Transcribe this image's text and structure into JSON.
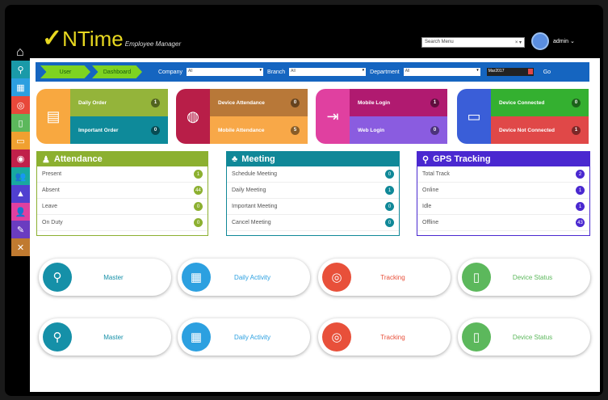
{
  "header": {
    "logo": "NTime",
    "logo_sub": "Employee Manager",
    "search_placeholder": "Search Menu",
    "user": "admin"
  },
  "sidebar": [
    {
      "icon": "location-icon",
      "color": "#1a9aa8"
    },
    {
      "icon": "calendar-check-icon",
      "color": "#2c9fe0"
    },
    {
      "icon": "tracking-icon",
      "color": "#e8483a"
    },
    {
      "icon": "mobile-icon",
      "color": "#5cb85c"
    },
    {
      "icon": "inbox-icon",
      "color": "#f0a030"
    },
    {
      "icon": "target-icon",
      "color": "#c0204a"
    },
    {
      "icon": "users-icon",
      "color": "#18a8a0"
    },
    {
      "icon": "chart-icon",
      "color": "#5040d0"
    },
    {
      "icon": "user-edit-icon",
      "color": "#e040a0"
    },
    {
      "icon": "edit-icon",
      "color": "#6a3cc0"
    },
    {
      "icon": "tools-icon",
      "color": "#c07a30"
    }
  ],
  "filter": {
    "crumbs": [
      "User",
      "Dashboard"
    ],
    "company_label": "Company",
    "company_value": "All",
    "branch_label": "Branch",
    "branch_value": "All",
    "department_label": "Department",
    "department_value": "All",
    "month": "Mar2017",
    "go": "Go"
  },
  "cards": [
    {
      "color": "#f8a840",
      "rows": [
        {
          "label": "Daily Order",
          "value": "1",
          "color": "#94b43a"
        },
        {
          "label": "Important Order",
          "value": "0",
          "color": "#0e8a9a"
        }
      ]
    },
    {
      "color": "#b81e48",
      "rows": [
        {
          "label": "Device Attendance",
          "value": "0",
          "color": "#b87838"
        },
        {
          "label": "Mobile Attendance",
          "value": "5",
          "color": "#f8a848"
        }
      ]
    },
    {
      "color": "#e040a0",
      "rows": [
        {
          "label": "Mobile Login",
          "value": "1",
          "color": "#b01a70"
        },
        {
          "label": "Web Login",
          "value": "0",
          "color": "#8a5ce0"
        }
      ]
    },
    {
      "color": "#3a5ed8",
      "rows": [
        {
          "label": "Device Connected",
          "value": "0",
          "color": "#34b030"
        },
        {
          "label": "Device Not Connected",
          "value": "1",
          "color": "#e04848"
        }
      ]
    }
  ],
  "panels": [
    {
      "title": "Attendance",
      "color": "#8cb030",
      "items": [
        {
          "label": "Present",
          "value": "1"
        },
        {
          "label": "Absent",
          "value": "44"
        },
        {
          "label": "Leave",
          "value": "0"
        },
        {
          "label": "On Duty",
          "value": "0"
        }
      ]
    },
    {
      "title": "Meeting",
      "color": "#108898",
      "items": [
        {
          "label": "Schedule Meeting",
          "value": "0"
        },
        {
          "label": "Daily Meeting",
          "value": "1"
        },
        {
          "label": "Important Meeting",
          "value": "0"
        },
        {
          "label": "Cancel Meeting",
          "value": "0"
        }
      ]
    },
    {
      "title": "GPS Tracking",
      "color": "#4a28d0",
      "items": [
        {
          "label": "Total Track",
          "value": "2"
        },
        {
          "label": "Online",
          "value": "1"
        },
        {
          "label": "Idle",
          "value": "1"
        },
        {
          "label": "Offline",
          "value": "43"
        }
      ]
    }
  ],
  "buttons": [
    {
      "label": "Master",
      "color": "#1590a8",
      "text": "#1590a8"
    },
    {
      "label": "Daily Activity",
      "color": "#2ca0e0",
      "text": "#2ca0e0"
    },
    {
      "label": "Tracking",
      "color": "#e8503a",
      "text": "#e8503a"
    },
    {
      "label": "Device Status",
      "color": "#5cb85c",
      "text": "#5cb85c"
    }
  ]
}
